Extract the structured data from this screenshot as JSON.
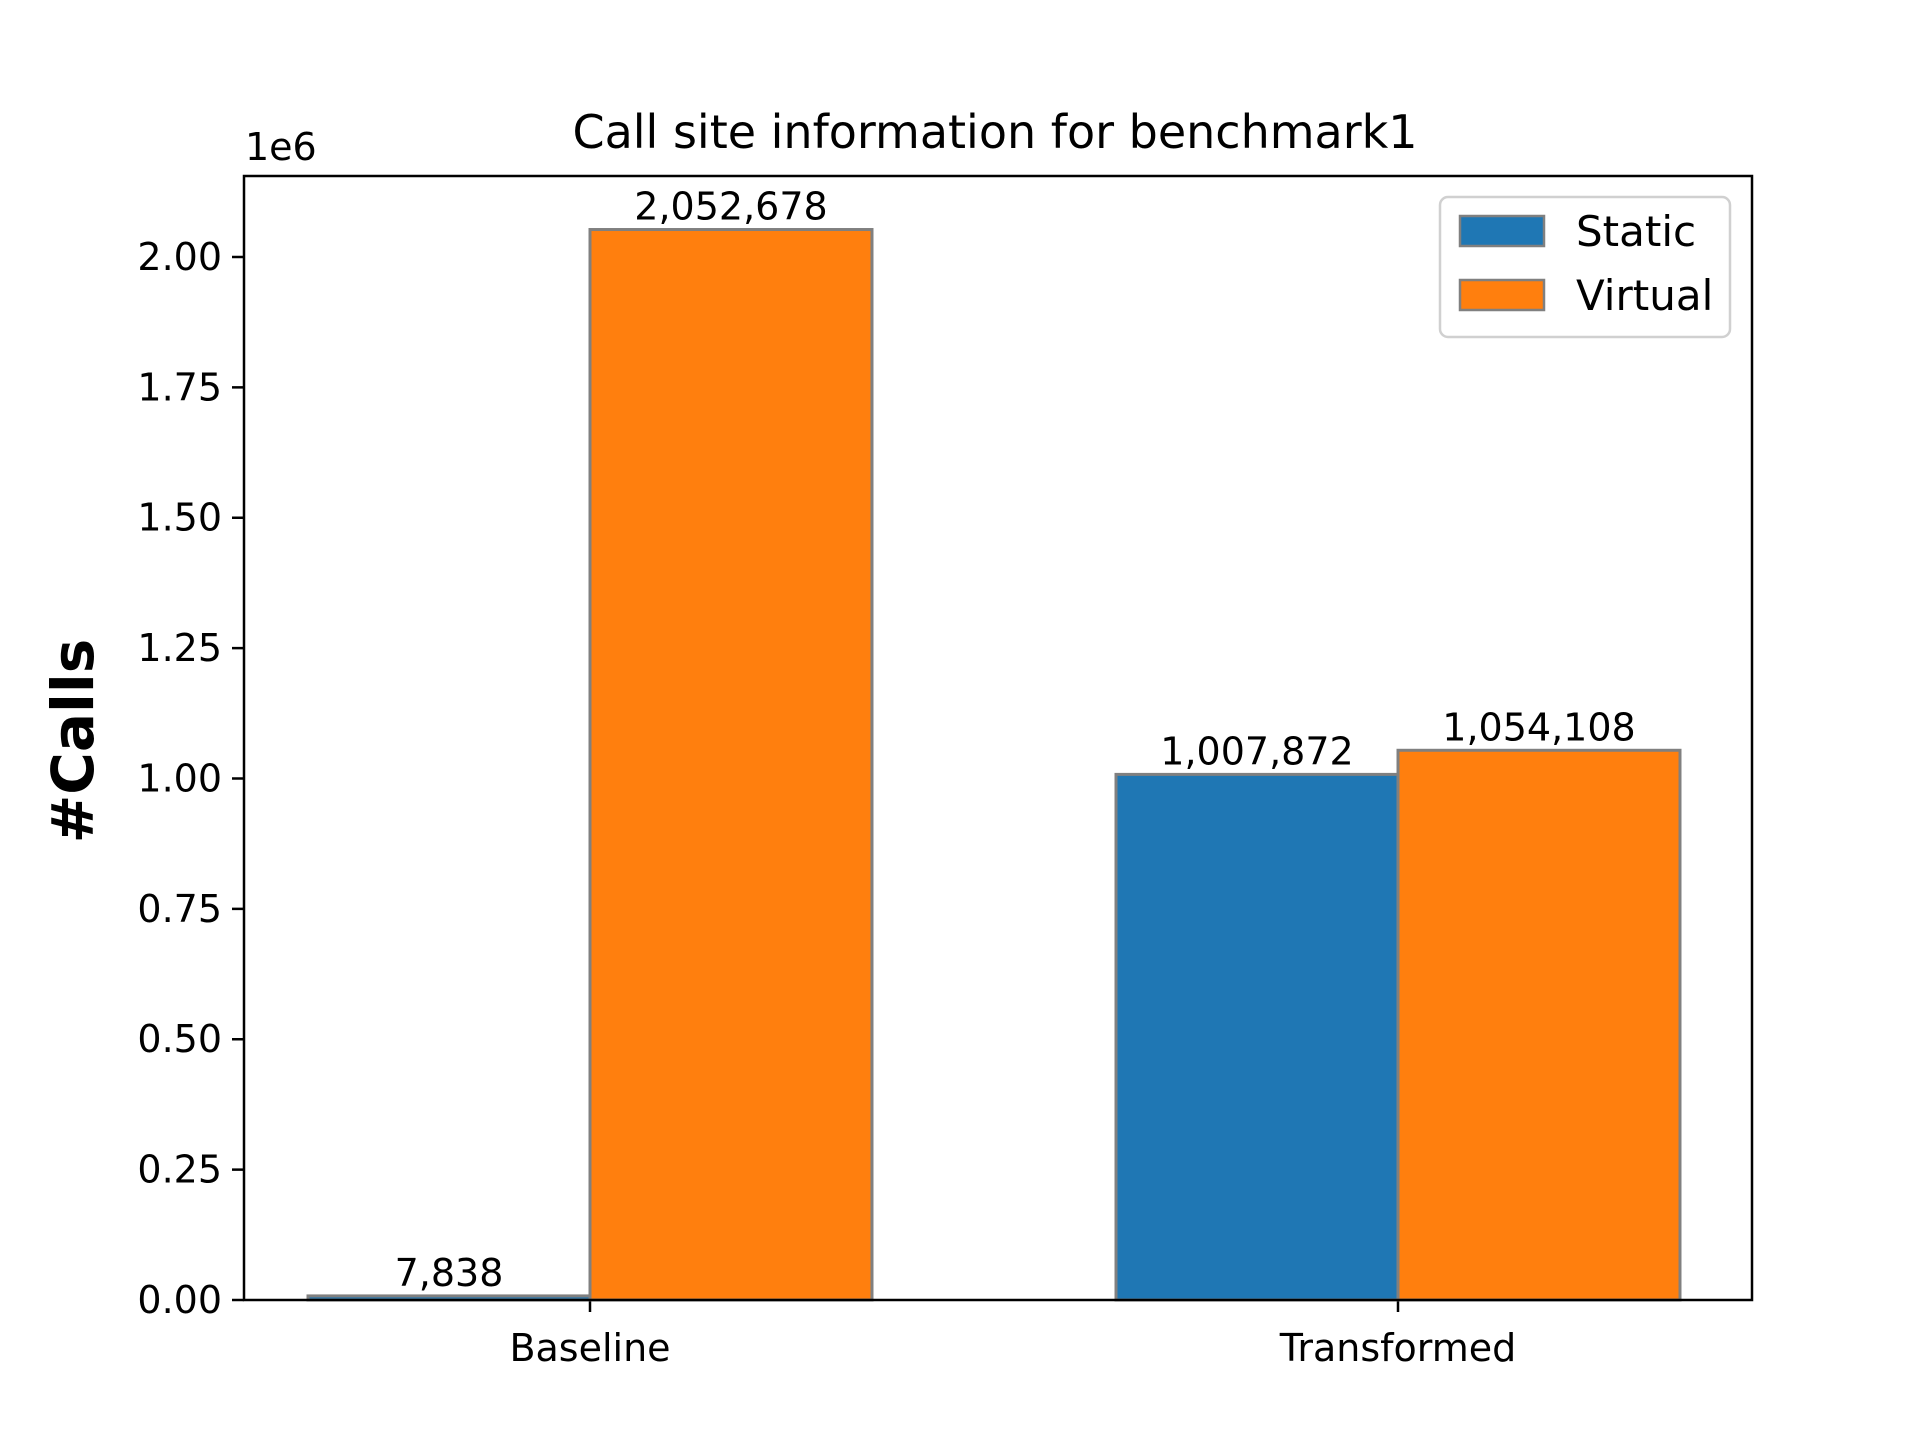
{
  "chart_data": {
    "type": "bar",
    "title": "Call site information for benchmark1",
    "xlabel": "",
    "ylabel": "#Calls",
    "y_offset_label": "1e6",
    "categories": [
      "Baseline",
      "Transformed"
    ],
    "series": [
      {
        "name": "Static",
        "values": [
          7838,
          1007872
        ],
        "color": "#1f77b4"
      },
      {
        "name": "Virtual",
        "values": [
          2052678,
          1054108
        ],
        "color": "#ff7f0e"
      }
    ],
    "data_labels": [
      [
        "7,838",
        "1,007,872"
      ],
      [
        "2,052,678",
        "1,054,108"
      ]
    ],
    "ylim": [
      0,
      2155311
    ],
    "yticks": [
      0,
      250000,
      500000,
      750000,
      1000000,
      1250000,
      1500000,
      1750000,
      2000000
    ],
    "ytick_labels": [
      "0.00",
      "0.25",
      "0.50",
      "0.75",
      "1.00",
      "1.25",
      "1.50",
      "1.75",
      "2.00"
    ],
    "bar_edge_color": "#808080",
    "legend_position": "top-right",
    "grid": false
  }
}
